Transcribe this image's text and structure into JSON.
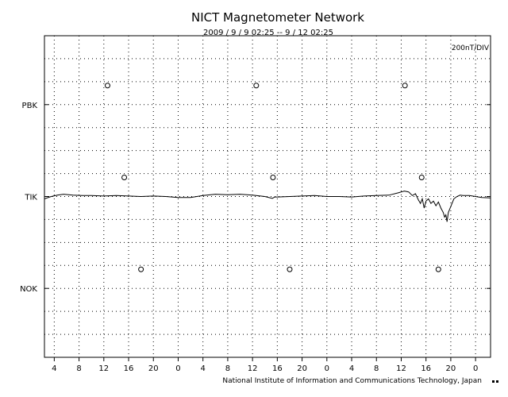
{
  "chart_data": {
    "type": "line",
    "title": "NICT Magnetometer Network",
    "subtitle": "2009 / 9 / 9   02:25 --  9 / 12   02:25",
    "scale_label": "200nT/DIV",
    "footer": "National Institute of Information and Communications Technology, Japan",
    "x_range": [
      2.4167,
      74.4167
    ],
    "x_ticks": [
      4,
      8,
      12,
      16,
      20,
      24,
      28,
      32,
      36,
      40,
      44,
      48,
      52,
      56,
      60,
      64,
      68,
      72
    ],
    "x_tick_labels": [
      "4",
      "8",
      "12",
      "16",
      "20",
      "0",
      "4",
      "8",
      "12",
      "16",
      "20",
      "0",
      "4",
      "8",
      "12",
      "16",
      "20",
      "0"
    ],
    "y_range": [
      -3.5,
      3.5
    ],
    "y_grid_step": 0.5,
    "grid": true,
    "grid_style": "dotted",
    "stations": [
      {
        "name": "PBK",
        "offset": 2,
        "midnight_markers_x": [
          12.6,
          36.6,
          60.6
        ],
        "values": [],
        "x": []
      },
      {
        "name": "TIK",
        "offset": 0,
        "midnight_markers_x": [
          15.3,
          39.3,
          63.3
        ],
        "x": [
          2.42,
          3.5,
          4.5,
          5.5,
          7,
          8.5,
          10,
          12,
          14,
          16,
          18,
          20,
          22,
          24,
          26,
          28,
          30,
          32,
          34,
          36,
          38,
          39.2,
          39.6,
          40,
          42,
          44,
          46,
          48,
          50,
          52,
          54,
          56,
          58,
          59.5,
          60.5,
          61.2,
          61.8,
          62.3,
          62.8,
          63.1,
          63.4,
          63.7,
          64,
          64.4,
          64.8,
          65.2,
          65.6,
          66,
          66.4,
          66.8,
          67,
          67.2,
          67.4,
          67.6,
          67.9,
          68.2,
          68.5,
          69,
          69.5,
          70,
          71,
          72,
          73,
          74.4
        ],
        "values": [
          -0.05,
          0.0,
          0.03,
          0.05,
          0.03,
          0.02,
          0.02,
          0.01,
          0.02,
          0.01,
          0.0,
          0.01,
          0.0,
          -0.02,
          -0.02,
          0.02,
          0.05,
          0.04,
          0.05,
          0.03,
          0.0,
          -0.04,
          -0.01,
          -0.01,
          0.0,
          0.01,
          0.02,
          0.0,
          0.0,
          -0.01,
          0.01,
          0.02,
          0.03,
          0.08,
          0.12,
          0.1,
          0.02,
          0.06,
          -0.08,
          -0.15,
          -0.05,
          -0.25,
          -0.1,
          -0.05,
          -0.15,
          -0.1,
          -0.2,
          -0.12,
          -0.25,
          -0.35,
          -0.45,
          -0.4,
          -0.55,
          -0.35,
          -0.25,
          -0.15,
          -0.05,
          0.0,
          0.03,
          0.02,
          0.02,
          0.0,
          -0.02,
          -0.03
        ]
      },
      {
        "name": "NOK",
        "offset": -2,
        "midnight_markers_x": [
          18.0,
          42.0,
          66.0
        ],
        "values": [],
        "x": []
      }
    ]
  }
}
